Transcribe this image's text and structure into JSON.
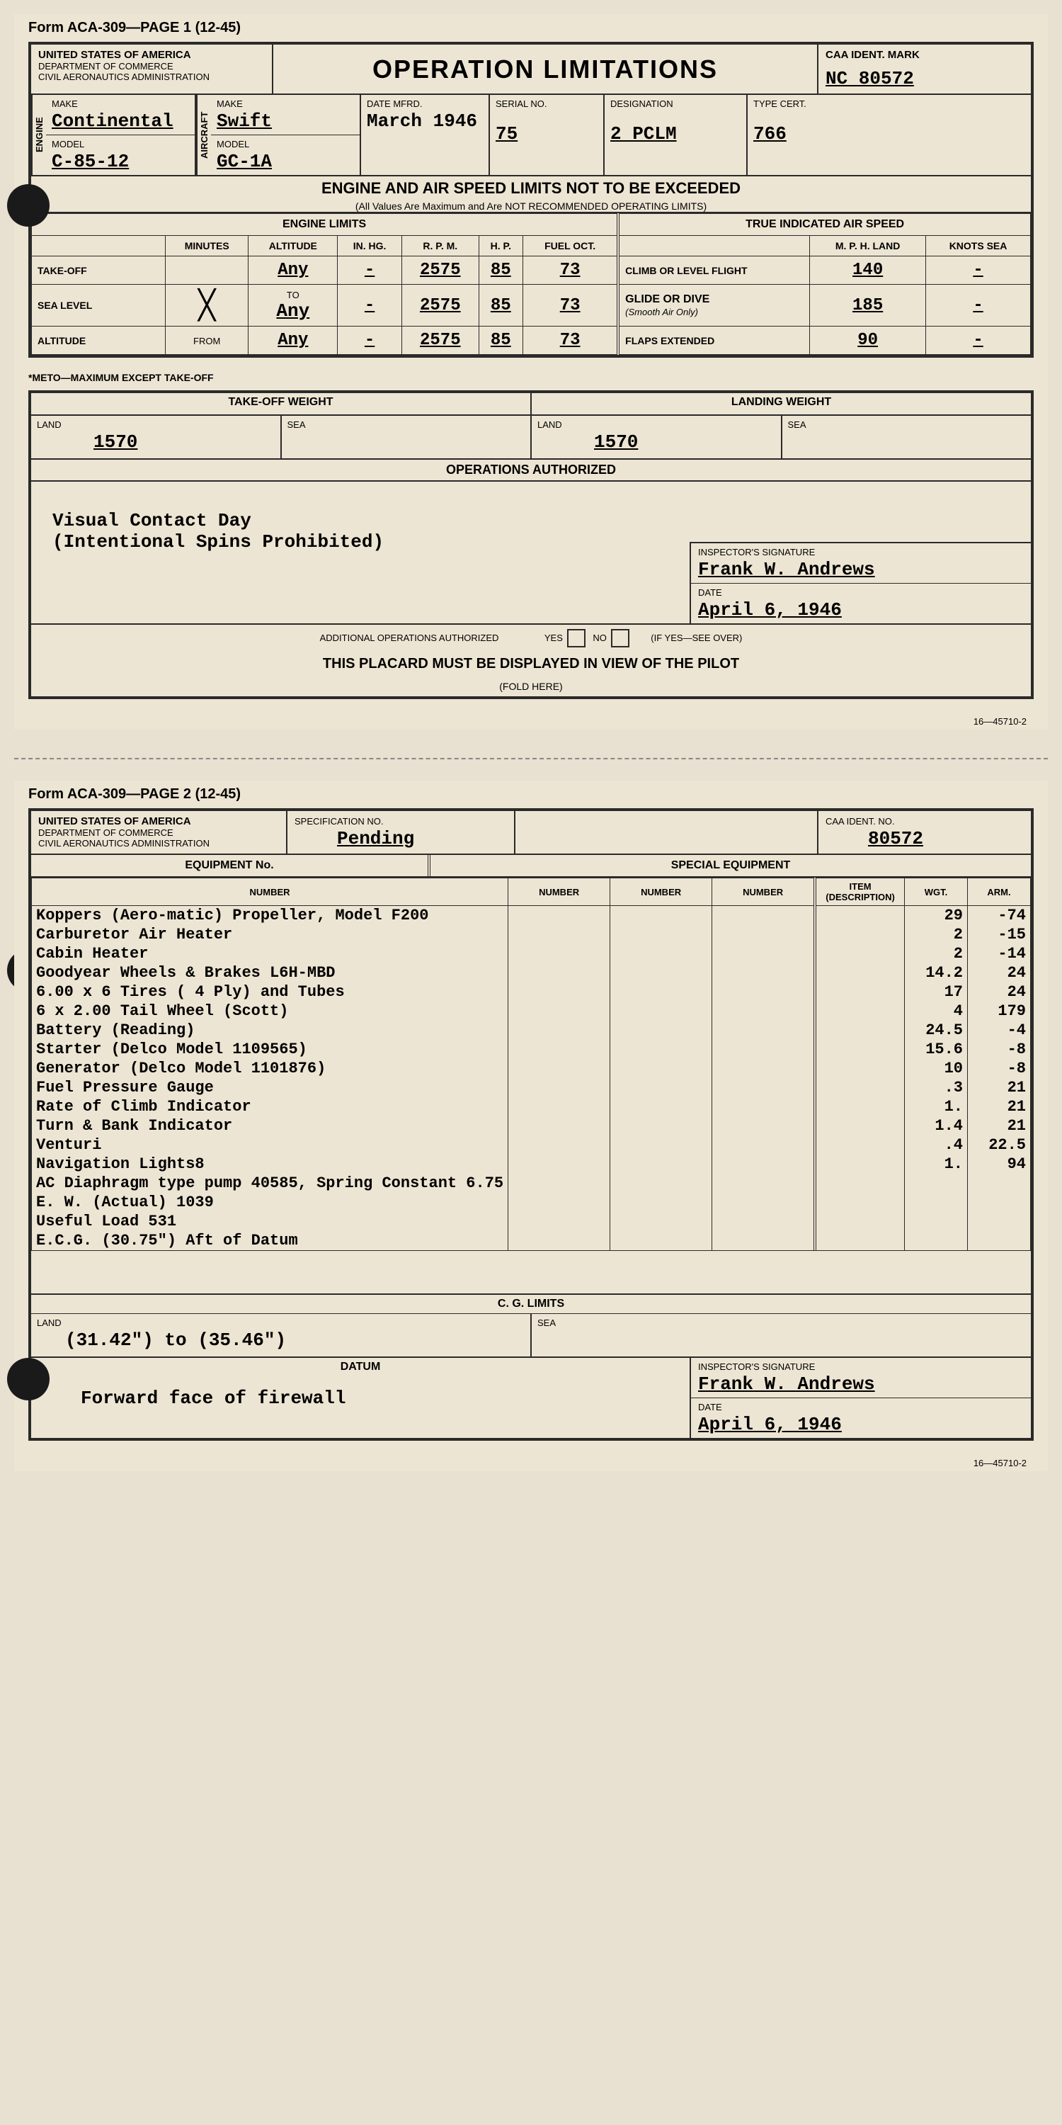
{
  "form_header_p1": "Form ACA-309—PAGE 1  (12-45)",
  "form_header_p2": "Form ACA-309—PAGE 2  (12-45)",
  "agency": {
    "country": "UNITED STATES OF AMERICA",
    "dept": "DEPARTMENT OF COMMERCE",
    "admin": "CIVIL AERONAUTICS ADMINISTRATION"
  },
  "title": "OPERATION  LIMITATIONS",
  "caa_ident_label": "CAA IDENT. MARK",
  "caa_ident": "NC 80572",
  "engine_label": "ENGINE",
  "aircraft_label": "AIRCRAFT",
  "make_label": "MAKE",
  "model_label": "MODEL",
  "engine_make": "Continental",
  "engine_model": "C-85-12",
  "aircraft_make": "Swift",
  "aircraft_model": "GC-1A",
  "date_mfrd_label": "DATE MFRD.",
  "date_mfrd": "March 1946",
  "serial_label": "SERIAL NO.",
  "serial": "75",
  "designation_label": "DESIGNATION",
  "designation": "2 PCLM",
  "type_cert_label": "TYPE CERT.",
  "type_cert": "766",
  "limits_title": "ENGINE AND AIR SPEED LIMITS NOT TO BE EXCEEDED",
  "limits_sub": "(All Values Are Maximum and Are NOT RECOMMENDED OPERATING LIMITS)",
  "engine_limits_hdr": "ENGINE LIMITS",
  "tias_hdr": "TRUE INDICATED AIR SPEED",
  "col_minutes": "MINUTES",
  "col_altitude": "ALTITUDE",
  "col_inhg": "IN. HG.",
  "col_rpm": "R. P. M.",
  "col_hp": "H. P.",
  "col_fuel": "FUEL OCT.",
  "col_mph": "M. P. H. LAND",
  "col_knots": "KNOTS SEA",
  "row_takeoff": "TAKE-OFF",
  "row_sealevel": "SEA LEVEL",
  "row_altitude": "ALTITUDE",
  "meto_label": "METO*",
  "to_label": "TO",
  "from_label": "FROM",
  "climb_label": "CLIMB OR LEVEL FLIGHT",
  "glide_label": "GLIDE OR DIVE",
  "glide_sub": "(Smooth Air Only)",
  "flaps_label": "FLAPS EXTENDED",
  "limits": {
    "takeoff": {
      "alt": "Any",
      "inhg": "-",
      "rpm": "2575",
      "hp": "85",
      "fuel": "73"
    },
    "sealevel": {
      "alt": "Any",
      "inhg": "-",
      "rpm": "2575",
      "hp": "85",
      "fuel": "73"
    },
    "altitude": {
      "alt": "Any",
      "inhg": "-",
      "rpm": "2575",
      "hp": "85",
      "fuel": "73"
    },
    "climb_mph": "140",
    "climb_kts": "-",
    "glide_mph": "185",
    "glide_kts": "-",
    "flaps_mph": "90",
    "flaps_kts": "-"
  },
  "meto_note": "*METO—MAXIMUM EXCEPT TAKE-OFF",
  "takeoff_wt_label": "TAKE-OFF WEIGHT",
  "landing_wt_label": "LANDING WEIGHT",
  "land_label": "LAND",
  "sea_label": "SEA",
  "takeoff_wt_land": "1570",
  "landing_wt_land": "1570",
  "ops_auth_label": "OPERATIONS AUTHORIZED",
  "ops_text1": "Visual Contact Day",
  "ops_text2": "(Intentional Spins Prohibited)",
  "inspector_label": "INSPECTOR'S SIGNATURE",
  "inspector": "Frank W. Andrews",
  "date_label": "DATE",
  "date": "April 6, 1946",
  "addl_ops": "ADDITIONAL OPERATIONS AUTHORIZED",
  "yes": "YES",
  "no": "NO",
  "if_yes": "(IF YES—SEE OVER)",
  "placard": "THIS PLACARD MUST BE DISPLAYED IN VIEW OF THE PILOT",
  "fold": "(FOLD HERE)",
  "footer_code": "16—45710-2",
  "spec_no_label": "SPECIFICATION NO.",
  "spec_no": "Pending",
  "caa_ident_no_label": "CAA IDENT. NO.",
  "caa_ident_no": "80572",
  "equip_no_label": "EQUIPMENT No.",
  "special_equip_label": "SPECIAL EQUIPMENT",
  "col_number": "NUMBER",
  "col_item": "ITEM (DESCRIPTION)",
  "col_wgt": "WGT.",
  "col_arm": "ARM.",
  "equipment": [
    {
      "item": "Koppers (Aero-matic) Propeller, Model F200",
      "wgt": "29",
      "arm": "-74"
    },
    {
      "item": "Carburetor Air Heater",
      "wgt": "2",
      "arm": "-15"
    },
    {
      "item": "Cabin Heater",
      "wgt": "2",
      "arm": "-14"
    },
    {
      "item": "Goodyear Wheels & Brakes L6H-MBD",
      "wgt": "14.2",
      "arm": "24"
    },
    {
      "item": "6.00 x 6 Tires ( 4 Ply) and Tubes",
      "wgt": "17",
      "arm": "24"
    },
    {
      "item": "6 x 2.00 Tail Wheel (Scott)",
      "wgt": "4",
      "arm": "179"
    },
    {
      "item": "Battery (Reading)",
      "wgt": "24.5",
      "arm": "-4"
    },
    {
      "item": "Starter (Delco Model 1109565)",
      "wgt": "15.6",
      "arm": "-8"
    },
    {
      "item": "Generator (Delco Model 1101876)",
      "wgt": "10",
      "arm": "-8"
    },
    {
      "item": "Fuel Pressure Gauge",
      "wgt": ".3",
      "arm": "21"
    },
    {
      "item": "Rate of Climb Indicator",
      "wgt": "1.",
      "arm": "21"
    },
    {
      "item": "Turn & Bank Indicator",
      "wgt": "1.4",
      "arm": "21"
    },
    {
      "item": "Venturi",
      "wgt": ".4",
      "arm": "22.5"
    },
    {
      "item": "Navigation Lights8",
      "wgt": "1.",
      "arm": "94"
    },
    {
      "item": "AC Diaphragm type pump 40585, Spring Constant 6.75",
      "wgt": "",
      "arm": ""
    },
    {
      "item": "E. W. (Actual)   1039",
      "wgt": "",
      "arm": ""
    },
    {
      "item": "Useful Load      531",
      "wgt": "",
      "arm": ""
    },
    {
      "item": "E.C.G.          (30.75\") Aft of Datum",
      "wgt": "",
      "arm": ""
    }
  ],
  "cg_limits_label": "C. G. LIMITS",
  "cg_land": "(31.42\") to (35.46\")",
  "datum_label": "DATUM",
  "datum": "Forward face of firewall"
}
